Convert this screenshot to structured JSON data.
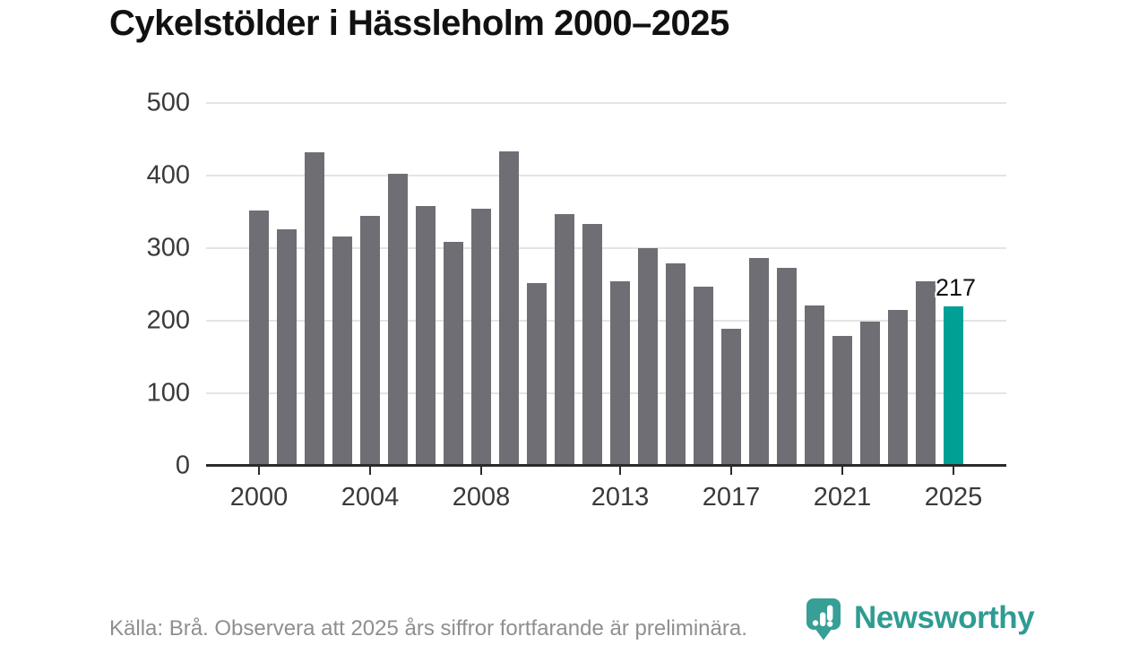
{
  "title": "Cykelstölder i Hässleholm 2000–2025",
  "footer": {
    "source_note": "Källa: Brå. Observera att 2025 års siffror fortfarande är preliminära."
  },
  "logo": {
    "text": "Newsworthy",
    "icon": "newsworthy-bubble-bar-chart-icon"
  },
  "colors": {
    "background": "#ffffff",
    "bar": "#6e6e74",
    "highlight": "#00a096",
    "logo": "#2f9c92",
    "logo_icon": "#379f95",
    "grid": "#e4e4e4",
    "axis": "#2b2b2b",
    "title": "#111111",
    "axis_label": "#3a3a3a",
    "footer": "#8f8f8f",
    "value_label": "#111111"
  },
  "chart_data": {
    "type": "bar",
    "title": "Cykelstölder i Hässleholm 2000–2025",
    "xlabel": "",
    "ylabel": "",
    "x": [
      2000,
      2001,
      2002,
      2003,
      2004,
      2005,
      2006,
      2007,
      2008,
      2009,
      2010,
      2011,
      2012,
      2013,
      2014,
      2015,
      2016,
      2017,
      2018,
      2019,
      2020,
      2021,
      2022,
      2023,
      2024,
      2025
    ],
    "values": [
      350,
      324,
      430,
      313,
      342,
      400,
      356,
      306,
      352,
      431,
      250,
      344,
      331,
      252,
      298,
      276,
      244,
      187,
      284,
      271,
      218,
      176,
      196,
      212,
      252,
      217
    ],
    "highlight_index": 25,
    "highlight_value_label": "217",
    "ylim": [
      0,
      500
    ],
    "yticks": [
      0,
      100,
      200,
      300,
      400,
      500
    ],
    "xticks": [
      2000,
      2004,
      2008,
      2013,
      2017,
      2021,
      2025
    ],
    "grid": "horizontal",
    "legend": "none"
  }
}
